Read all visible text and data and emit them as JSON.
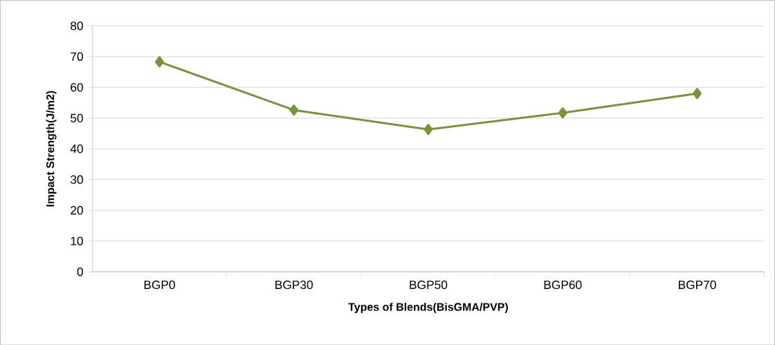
{
  "chart_data": {
    "type": "line",
    "xlabel": "Types of Blends(BisGMA/PVP)",
    "ylabel": "Impact Strength(J/m2)",
    "categories": [
      "BGP0",
      "BGP30",
      "BGP50",
      "BGP60",
      "BGP70"
    ],
    "values": [
      68.3,
      52.6,
      46.3,
      51.7,
      58.0
    ],
    "color": "#77933c",
    "marker": "diamond",
    "line_style": "solid",
    "ylim": [
      0,
      80
    ],
    "yticks": [
      0,
      10,
      20,
      30,
      40,
      50,
      60,
      70,
      80
    ],
    "grid": "y"
  }
}
